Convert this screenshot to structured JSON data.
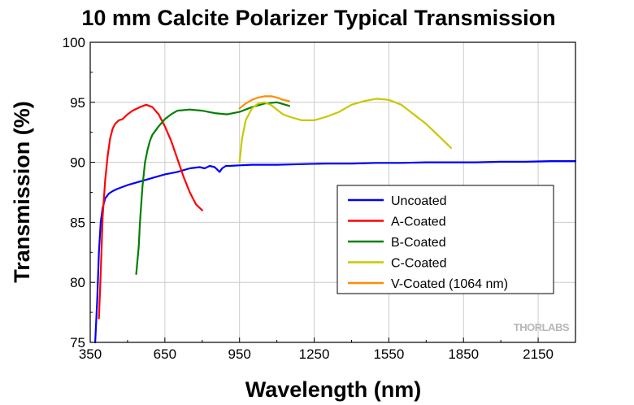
{
  "chart_data": {
    "type": "line",
    "title": "10 mm Calcite Polarizer Typical Transmission",
    "xlabel": "Wavelength (nm)",
    "ylabel": "Transmission (%)",
    "xlim": [
      350,
      2300
    ],
    "ylim": [
      75,
      100
    ],
    "xticks": [
      350,
      650,
      950,
      1250,
      1550,
      1850,
      2150
    ],
    "yticks": [
      75,
      80,
      85,
      90,
      95,
      100
    ],
    "grid": true,
    "legend_position": "bottom-right",
    "watermark": "THORLABS",
    "series": [
      {
        "name": "Uncoated",
        "color": "#0000ff",
        "x": [
          370,
          378,
          385,
          392,
          400,
          410,
          425,
          440,
          460,
          500,
          550,
          600,
          650,
          700,
          750,
          790,
          810,
          830,
          850,
          870,
          880,
          895,
          910,
          950,
          1000,
          1050,
          1100,
          1200,
          1300,
          1400,
          1500,
          1600,
          1700,
          1800,
          1900,
          2000,
          2100,
          2200,
          2300
        ],
        "y": [
          75.0,
          78.5,
          82.5,
          85.0,
          86.2,
          87.0,
          87.4,
          87.6,
          87.8,
          88.1,
          88.4,
          88.7,
          89.0,
          89.2,
          89.5,
          89.6,
          89.5,
          89.7,
          89.6,
          89.2,
          89.5,
          89.7,
          89.7,
          89.75,
          89.8,
          89.8,
          89.8,
          89.85,
          89.9,
          89.9,
          89.95,
          89.95,
          90.0,
          90.0,
          90.0,
          90.05,
          90.05,
          90.1,
          90.1
        ]
      },
      {
        "name": "A-Coated",
        "color": "#ff0000",
        "x": [
          385,
          390,
          395,
          400,
          410,
          420,
          430,
          440,
          450,
          465,
          480,
          500,
          520,
          550,
          575,
          600,
          625,
          650,
          675,
          700,
          725,
          750,
          775,
          800
        ],
        "y": [
          77.0,
          79.5,
          82.5,
          85.5,
          88.5,
          90.5,
          92.0,
          92.8,
          93.2,
          93.5,
          93.6,
          94.0,
          94.3,
          94.6,
          94.8,
          94.6,
          94.0,
          93.0,
          91.8,
          90.3,
          88.8,
          87.5,
          86.5,
          86.0
        ]
      },
      {
        "name": "B-Coated",
        "color": "#008000",
        "x": [
          535,
          545,
          550,
          560,
          570,
          580,
          590,
          600,
          625,
          650,
          675,
          700,
          750,
          800,
          850,
          900,
          950,
          1000,
          1050,
          1100,
          1150
        ],
        "y": [
          80.7,
          83.0,
          85.0,
          88.0,
          90.0,
          91.0,
          91.8,
          92.3,
          93.0,
          93.6,
          94.0,
          94.3,
          94.4,
          94.3,
          94.1,
          94.0,
          94.2,
          94.6,
          94.9,
          95.0,
          94.7
        ]
      },
      {
        "name": "C-Coated",
        "color": "#c8c800",
        "x": [
          950,
          960,
          975,
          1000,
          1025,
          1050,
          1075,
          1100,
          1125,
          1150,
          1200,
          1250,
          1300,
          1350,
          1400,
          1450,
          1500,
          1550,
          1600,
          1650,
          1700,
          1750,
          1800
        ],
        "y": [
          90.0,
          92.0,
          93.5,
          94.5,
          94.9,
          95.0,
          94.8,
          94.4,
          94.0,
          93.8,
          93.5,
          93.5,
          93.8,
          94.2,
          94.8,
          95.1,
          95.3,
          95.2,
          94.8,
          94.0,
          93.2,
          92.2,
          91.2
        ]
      },
      {
        "name": "V-Coated (1064 nm)",
        "color": "#ff8c00",
        "x": [
          950,
          975,
          1000,
          1025,
          1050,
          1064,
          1080,
          1100,
          1125,
          1150
        ],
        "y": [
          94.5,
          94.9,
          95.2,
          95.4,
          95.5,
          95.5,
          95.5,
          95.4,
          95.2,
          95.1
        ]
      }
    ]
  }
}
